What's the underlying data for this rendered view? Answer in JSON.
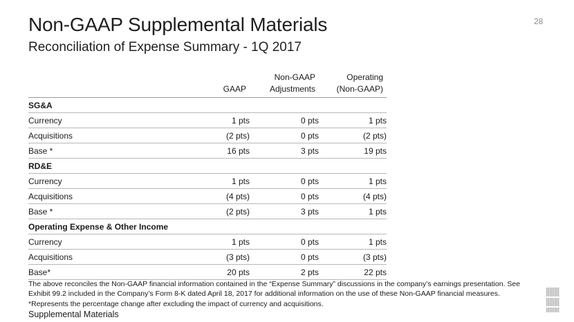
{
  "header": {
    "title": "Non-GAAP Supplemental Materials",
    "subtitle": "Reconciliation of Expense Summary - 1Q 2017",
    "page_number": "28"
  },
  "table": {
    "columns": [
      {
        "line1": "",
        "line2": "GAAP"
      },
      {
        "line1": "Non-GAAP",
        "line2": "Adjustments"
      },
      {
        "line1": "Operating",
        "line2": "(Non-GAAP)"
      }
    ],
    "rows": [
      {
        "type": "section",
        "label": "SG&A"
      },
      {
        "type": "data",
        "label": "Currency",
        "gaap": "1 pts",
        "adj": "0 pts",
        "op": "1 pts"
      },
      {
        "type": "data",
        "label": "Acquisitions",
        "gaap": "(2 pts)",
        "adj": "0 pts",
        "op": "(2 pts)"
      },
      {
        "type": "data",
        "label": "Base *",
        "gaap": "16 pts",
        "adj": "3 pts",
        "op": "19 pts"
      },
      {
        "type": "section",
        "label": "RD&E"
      },
      {
        "type": "data",
        "label": "Currency",
        "gaap": "1 pts",
        "adj": "0 pts",
        "op": "1 pts"
      },
      {
        "type": "data",
        "label": "Acquisitions",
        "gaap": "(4 pts)",
        "adj": "0 pts",
        "op": "(4 pts)"
      },
      {
        "type": "data",
        "label": "Base *",
        "gaap": "(2 pts)",
        "adj": "3 pts",
        "op": "1 pts"
      },
      {
        "type": "section",
        "label": "Operating Expense & Other Income"
      },
      {
        "type": "data",
        "label": "Currency",
        "gaap": "1 pts",
        "adj": "0 pts",
        "op": "1 pts"
      },
      {
        "type": "data",
        "label": "Acquisitions",
        "gaap": "(3 pts)",
        "adj": "0 pts",
        "op": "(3 pts)"
      },
      {
        "type": "data",
        "label": "Base*",
        "gaap": "20 pts",
        "adj": "2 pts",
        "op": "22 pts"
      }
    ]
  },
  "footnotes": {
    "reconcile_note": "The above reconciles the Non-GAAP financial information contained in the “Expense Summary” discussions in the company’s earnings presentation. See Exhibit 99.2 included in the Company’s Form 8-K dated April 18, 2017 for additional information on the use of these Non-GAAP financial measures.",
    "asterisk_note": "*Represents the percentage change after excluding the impact of currency and acquisitions.",
    "footer_label": "Supplemental Materials"
  },
  "logo": {
    "text": "IBM",
    "color": "#b0b0b0"
  }
}
